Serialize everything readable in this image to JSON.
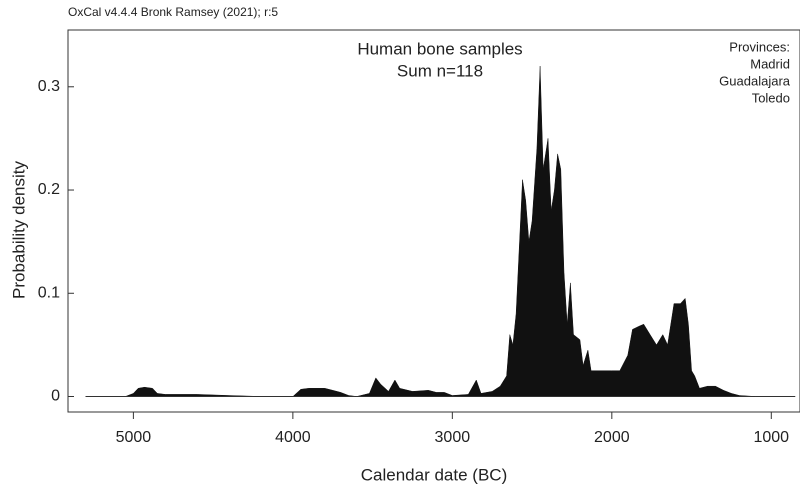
{
  "chart_data": {
    "type": "area",
    "header": "OxCal v4.4.4 Bronk Ramsey (2021); r:5",
    "title": "Human bone samples",
    "subtitle": "Sum n=118",
    "annotation": [
      "Provinces:",
      "Madrid",
      "Guadalajara",
      "Toledo"
    ],
    "x_label": "Calendar date (BC)",
    "y_label": "Probability density",
    "xlim": [
      5410,
      820
    ],
    "ylim": [
      -0.015,
      0.355
    ],
    "xticks": [
      5000,
      4000,
      3000,
      2000,
      1000
    ],
    "yticks": [
      0,
      0.1,
      0.2,
      0.3
    ],
    "x": [
      5300,
      5050,
      5000,
      4970,
      4930,
      4880,
      4850,
      4800,
      4600,
      4400,
      4200,
      4000,
      3950,
      3900,
      3800,
      3750,
      3700,
      3650,
      3600,
      3520,
      3480,
      3450,
      3400,
      3360,
      3330,
      3250,
      3150,
      3100,
      3050,
      3000,
      2900,
      2850,
      2820,
      2750,
      2700,
      2660,
      2640,
      2620,
      2600,
      2560,
      2540,
      2520,
      2500,
      2470,
      2450,
      2430,
      2400,
      2380,
      2360,
      2340,
      2320,
      2300,
      2280,
      2260,
      2240,
      2200,
      2180,
      2150,
      2130,
      2000,
      1950,
      1900,
      1870,
      1830,
      1800,
      1760,
      1720,
      1680,
      1650,
      1610,
      1570,
      1540,
      1520,
      1500,
      1480,
      1450,
      1400,
      1350,
      1300,
      1250,
      1200,
      1100,
      850
    ],
    "series": [
      {
        "name": "Sum",
        "color": "#111111",
        "values": [
          0,
          0,
          0.003,
          0.008,
          0.009,
          0.008,
          0.003,
          0.002,
          0.002,
          0.001,
          0,
          0,
          0.007,
          0.008,
          0.008,
          0.006,
          0.004,
          0.001,
          0,
          0.003,
          0.018,
          0.012,
          0.005,
          0.016,
          0.008,
          0.005,
          0.006,
          0.004,
          0.004,
          0.001,
          0.002,
          0.016,
          0.003,
          0.005,
          0.01,
          0.02,
          0.06,
          0.05,
          0.08,
          0.21,
          0.19,
          0.15,
          0.17,
          0.24,
          0.32,
          0.22,
          0.25,
          0.18,
          0.2,
          0.235,
          0.22,
          0.12,
          0.07,
          0.11,
          0.06,
          0.055,
          0.03,
          0.045,
          0.025,
          0.025,
          0.025,
          0.04,
          0.065,
          0.068,
          0.07,
          0.06,
          0.05,
          0.06,
          0.05,
          0.09,
          0.09,
          0.095,
          0.07,
          0.025,
          0.02,
          0.008,
          0.01,
          0.01,
          0.006,
          0.003,
          0.001,
          0,
          0
        ]
      }
    ]
  }
}
